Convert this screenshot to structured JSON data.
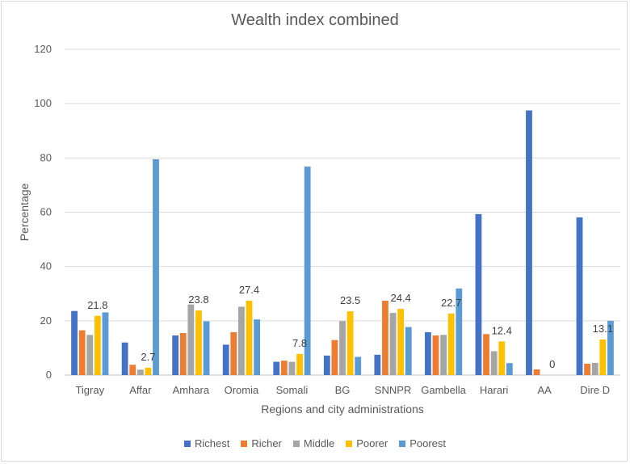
{
  "chart_data": {
    "type": "bar",
    "title": "Wealth index combined",
    "xlabel": "Regions and city administrations",
    "ylabel": "Percentage",
    "ylim": [
      0,
      120
    ],
    "yticks": [
      0,
      20,
      40,
      60,
      80,
      100,
      120
    ],
    "grid": true,
    "legend_position": "bottom",
    "categories": [
      "Tigray",
      "Affar",
      "Amhara",
      "Oromia",
      "Somali",
      "BG",
      "SNNPR",
      "Gambella",
      "Harari",
      "AA",
      "Dire D"
    ],
    "series": [
      {
        "name": "Richest",
        "color": "#4472c4",
        "values": [
          23.6,
          12.0,
          14.6,
          11.2,
          4.9,
          7.2,
          7.5,
          15.8,
          59.3,
          97.5,
          58.1
        ]
      },
      {
        "name": "Richer",
        "color": "#ed7d31",
        "values": [
          16.5,
          3.8,
          15.5,
          15.8,
          5.3,
          12.9,
          27.4,
          14.6,
          15.1,
          2.1,
          4.2
        ]
      },
      {
        "name": "Middle",
        "color": "#a5a5a5",
        "values": [
          14.8,
          2.0,
          26.0,
          25.2,
          4.9,
          19.9,
          22.9,
          14.8,
          8.8,
          0,
          4.5
        ]
      },
      {
        "name": "Poorer",
        "color": "#ffc000",
        "values": [
          21.8,
          2.7,
          23.8,
          27.4,
          7.8,
          23.5,
          24.4,
          22.7,
          12.4,
          0,
          13.1
        ]
      },
      {
        "name": "Poorest",
        "color": "#5b9bd5",
        "values": [
          23.1,
          79.5,
          19.8,
          20.5,
          76.8,
          6.7,
          17.7,
          31.9,
          4.4,
          0,
          20.0
        ]
      }
    ],
    "data_labels": {
      "series": "Poorer",
      "values": [
        "21.8",
        "2.7",
        "23.8",
        "27.4",
        "7.8",
        "23.5",
        "24.4",
        "22.7",
        "12.4",
        "0",
        "13.1"
      ]
    }
  }
}
